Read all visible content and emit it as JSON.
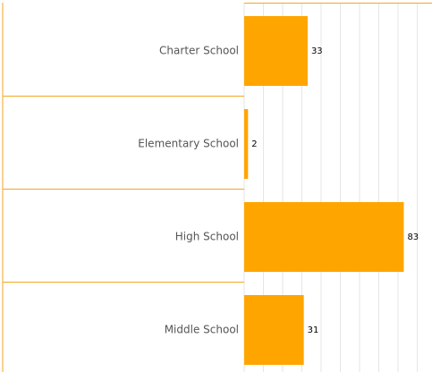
{
  "chart_data": {
    "type": "hbar",
    "categories": [
      "Charter School",
      "Elementary School",
      "High School",
      "Middle School"
    ],
    "values": [
      33,
      2,
      83,
      31
    ],
    "color": "#ffa500",
    "xlim": [
      0,
      100
    ],
    "xticks": [
      0,
      10,
      20,
      30,
      40,
      50,
      60,
      70,
      80,
      90,
      100
    ],
    "grid": true
  }
}
